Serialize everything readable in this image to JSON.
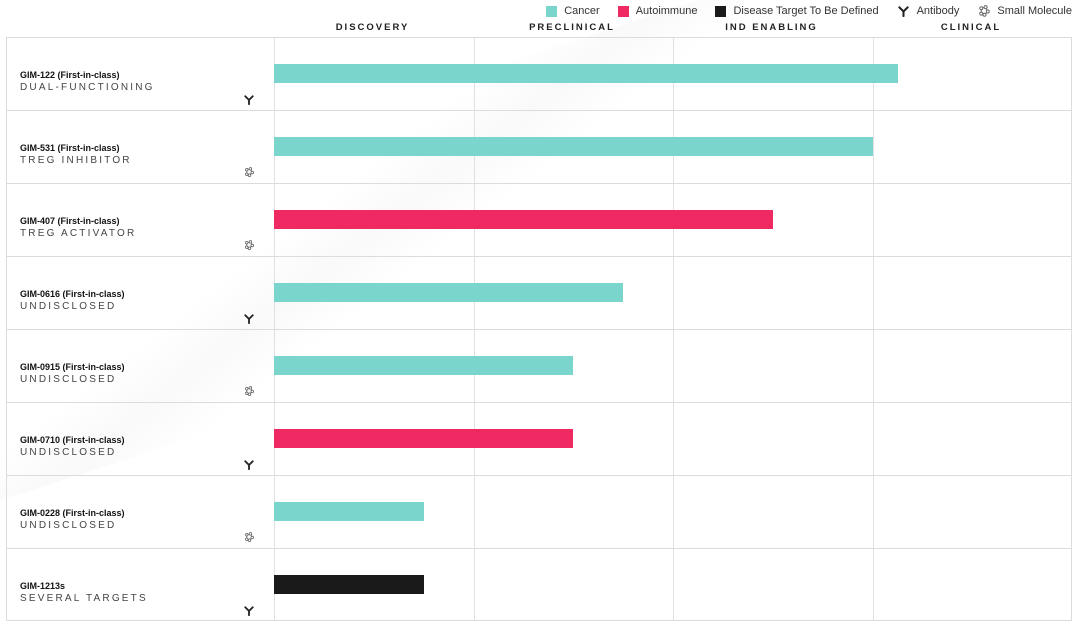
{
  "legend": {
    "items": [
      {
        "label": "Cancer",
        "kind": "swatch",
        "color": "#7ad6cc"
      },
      {
        "label": "Autoimmune",
        "kind": "swatch",
        "color": "#ef2a62"
      },
      {
        "label": "Disease Target To Be Defined",
        "kind": "swatch",
        "color": "#1a1a1a"
      },
      {
        "label": "Antibody",
        "kind": "icon",
        "icon": "antibody-icon"
      },
      {
        "label": "Small Molecule",
        "kind": "icon",
        "icon": "small-molecule-icon"
      }
    ]
  },
  "chart_data": {
    "type": "bar",
    "orientation": "horizontal",
    "phases": [
      "DISCOVERY",
      "PRECLINICAL",
      "IND ENABLING",
      "CLINICAL"
    ],
    "xlim": [
      0,
      4
    ],
    "categories": [
      {
        "name": "GIM-122 (First-in-class)",
        "desc": "DUAL-FUNCTIONING",
        "modality": "antibody",
        "indication": "Cancer",
        "color": "#7ad6cc",
        "value": 3.13
      },
      {
        "name": "GIM-531 (First-in-class)",
        "desc": "TREG INHIBITOR",
        "modality": "small-molecule",
        "indication": "Cancer",
        "color": "#7ad6cc",
        "value": 3.0
      },
      {
        "name": "GIM-407 (First-in-class)",
        "desc": "TREG ACTIVATOR",
        "modality": "small-molecule",
        "indication": "Autoimmune",
        "color": "#ef2a62",
        "value": 2.5
      },
      {
        "name": "GIM-0616 (First-in-class)",
        "desc": "UNDISCLOSED",
        "modality": "antibody",
        "indication": "Cancer",
        "color": "#7ad6cc",
        "value": 1.75
      },
      {
        "name": "GIM-0915 (First-in-class)",
        "desc": "UNDISCLOSED",
        "modality": "small-molecule",
        "indication": "Cancer",
        "color": "#7ad6cc",
        "value": 1.5
      },
      {
        "name": "GIM-0710 (First-in-class)",
        "desc": "UNDISCLOSED",
        "modality": "antibody",
        "indication": "Autoimmune",
        "color": "#ef2a62",
        "value": 1.5
      },
      {
        "name": "GIM-0228 (First-in-class)",
        "desc": "UNDISCLOSED",
        "modality": "small-molecule",
        "indication": "Cancer",
        "color": "#7ad6cc",
        "value": 0.75
      },
      {
        "name": "GIM-1213s",
        "desc": "SEVERAL TARGETS",
        "modality": "antibody",
        "indication": "Disease Target To Be Defined",
        "color": "#1a1a1a",
        "value": 0.75
      }
    ],
    "grid": true,
    "legend_position": "top-right"
  }
}
